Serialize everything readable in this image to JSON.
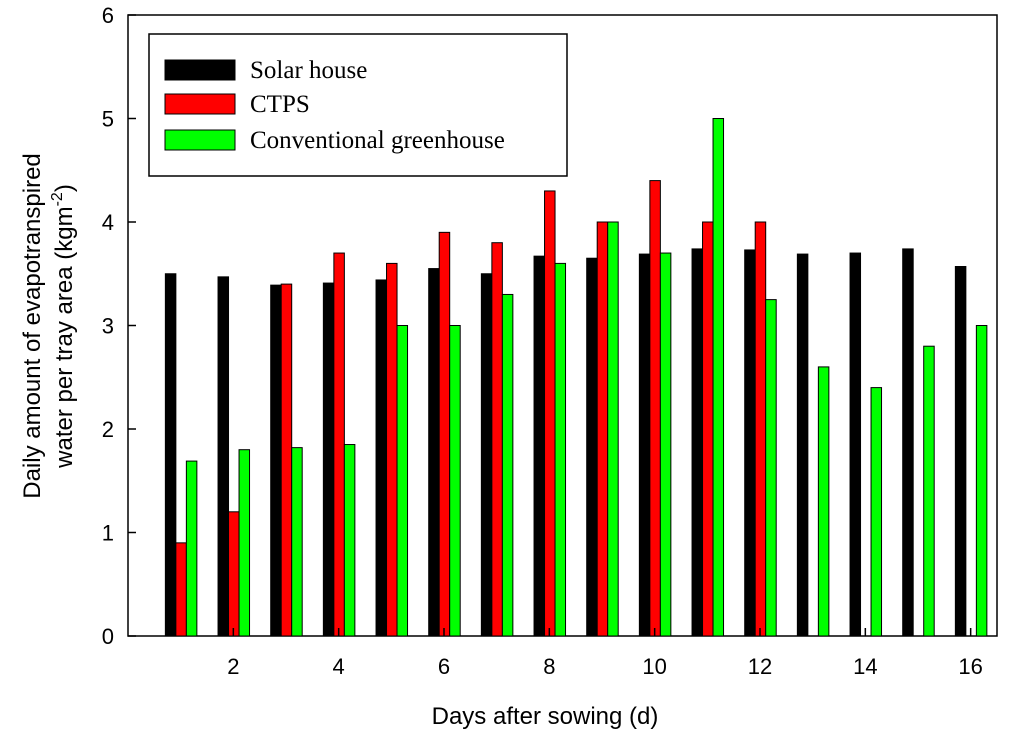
{
  "chart_data": {
    "type": "bar",
    "xlabel": "Days after sowing (d)",
    "ylabel_line1": "Daily amount of evapotranspired",
    "ylabel_line2": "water per tray area (kgm",
    "ylabel_exponent": "-2",
    "ylabel_close": ")",
    "ylim": [
      0,
      6
    ],
    "yticks": [
      0,
      1,
      2,
      3,
      4,
      5,
      6
    ],
    "xticks": [
      2,
      4,
      6,
      8,
      10,
      12,
      14,
      16
    ],
    "categories": [
      1,
      2,
      3,
      4,
      5,
      6,
      7,
      8,
      9,
      10,
      11,
      12,
      13,
      14,
      15,
      16
    ],
    "legend_position": "top-left",
    "series": [
      {
        "name": "Solar house",
        "color": "#000000",
        "values": [
          3.5,
          3.47,
          3.39,
          3.41,
          3.44,
          3.55,
          3.5,
          3.67,
          3.65,
          3.69,
          3.74,
          3.73,
          3.69,
          3.7,
          3.74,
          3.57
        ]
      },
      {
        "name": "CTPS",
        "color": "#ff0000",
        "values": [
          0.9,
          1.2,
          3.4,
          3.7,
          3.6,
          3.9,
          3.8,
          4.3,
          4.0,
          4.4,
          4.0,
          4.0,
          null,
          null,
          null,
          null
        ]
      },
      {
        "name": "Conventional greenhouse",
        "color": "#00ff00",
        "values": [
          1.69,
          1.8,
          1.82,
          1.85,
          3.0,
          3.0,
          3.3,
          3.6,
          4.0,
          3.7,
          5.0,
          3.25,
          2.6,
          2.4,
          2.8,
          3.0
        ]
      }
    ]
  }
}
